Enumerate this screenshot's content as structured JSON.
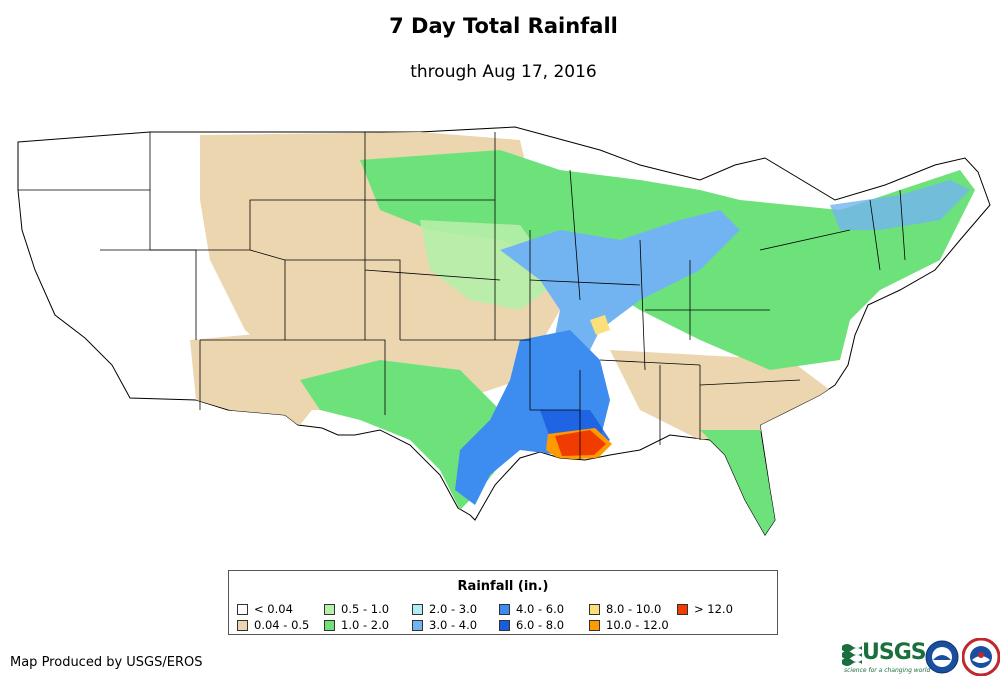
{
  "title": "7 Day Total Rainfall",
  "subtitle": "through Aug 17, 2016",
  "legend": {
    "title": "Rainfall (in.)",
    "items": [
      {
        "label": "< 0.04",
        "color": "#ffffff"
      },
      {
        "label": "0.04 - 0.5",
        "color": "#ecd6b0"
      },
      {
        "label": "0.5 - 1.0",
        "color": "#b4f0a8"
      },
      {
        "label": "1.0 - 2.0",
        "color": "#6ee27a"
      },
      {
        "label": "2.0 - 3.0",
        "color": "#b0ecf4"
      },
      {
        "label": "3.0 - 4.0",
        "color": "#72b4f2"
      },
      {
        "label": "4.0 - 6.0",
        "color": "#3d8cf0"
      },
      {
        "label": "6.0 - 8.0",
        "color": "#1a5ee0"
      },
      {
        "label": "8.0 - 10.0",
        "color": "#fbe07a"
      },
      {
        "label": "10.0 - 12.0",
        "color": "#ff9a00"
      },
      {
        "label": "> 12.0",
        "color": "#f03c00"
      }
    ]
  },
  "credit": "Map Produced by USGS/EROS",
  "logos": {
    "usgs_text": "USGS",
    "usgs_tagline": "science for a changing world",
    "noaa": "noaa",
    "nws": "National Weather Service"
  },
  "map": {
    "region": "Contiguous United States",
    "max_area": "South Louisiana > 12.0 in."
  }
}
